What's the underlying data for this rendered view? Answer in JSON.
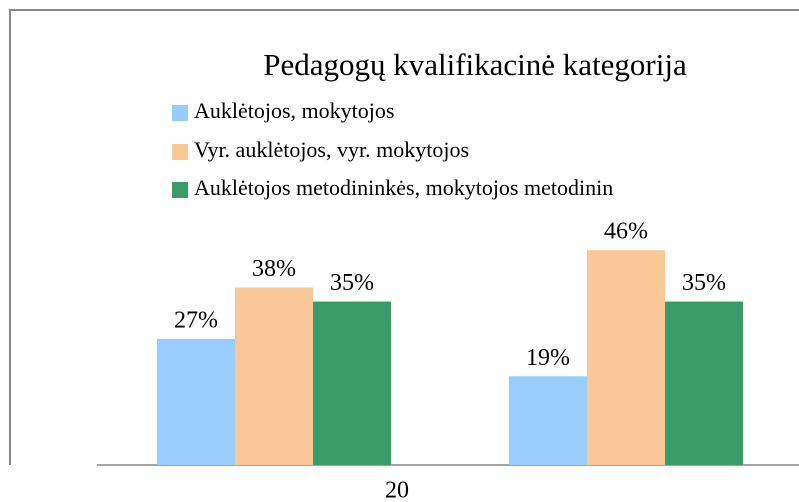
{
  "chart_data": {
    "type": "bar",
    "title": "Pedagogų kvalifikacinė kategorija",
    "categories": [
      null,
      null
    ],
    "xlabel": "20",
    "series": [
      {
        "name": "Auklėtojos, mokytojos",
        "color": "#99ccff",
        "values": [
          27,
          19
        ],
        "value_labels": [
          "27%",
          "19%"
        ]
      },
      {
        "name": "Vyr. auklėtojos, vyr. mokytojos",
        "color": "#fac896",
        "values": [
          38,
          46
        ],
        "value_labels": [
          "38%",
          "46%"
        ]
      },
      {
        "name": "Auklėtojos metodininkės, mokytojos metodinin",
        "color": "#3a9a68",
        "values": [
          35,
          35
        ],
        "value_labels": [
          "35%",
          "35%"
        ]
      }
    ],
    "legend": "top-left"
  }
}
